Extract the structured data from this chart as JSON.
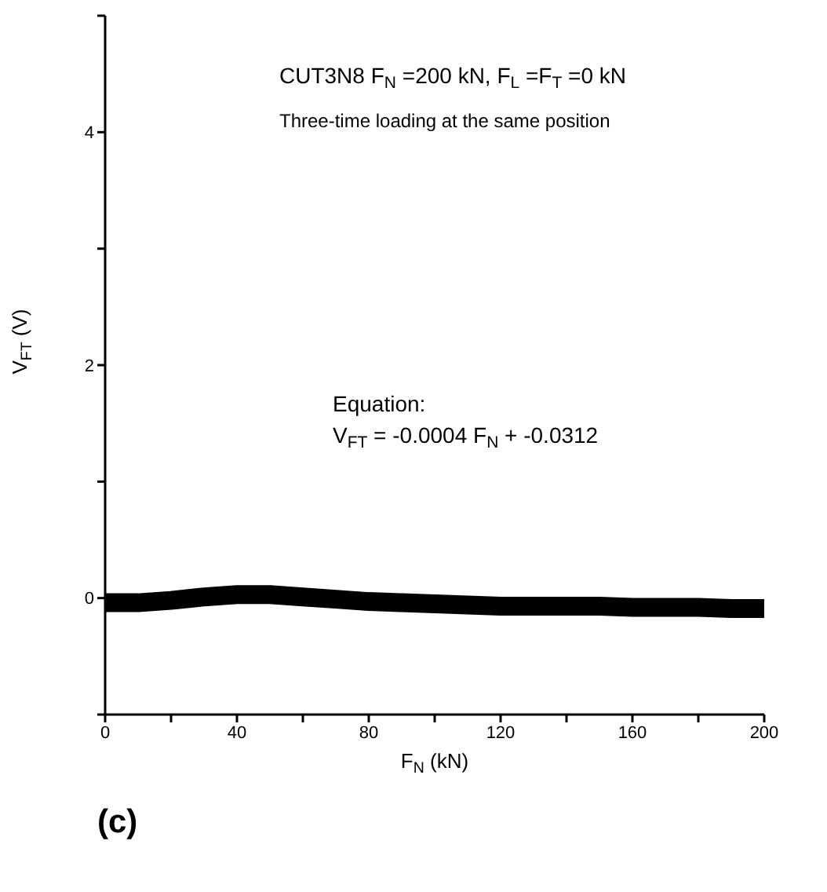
{
  "chart_data": {
    "type": "line",
    "xlabel": "F$_{N}$  (kN)",
    "ylabel": "V$_{FT}$ (V)",
    "annotations": [
      "CUT3N8 F$_{N}$ =200 kN, F$_{L}$ =F$_{T}$ =0 kN",
      "Three-time loading at the same position",
      "Equation:",
      "V$_{FT}$ = -0.0004 F$_{N}$ + -0.0312",
      "(c)"
    ],
    "x": [
      0,
      10,
      20,
      30,
      40,
      50,
      60,
      70,
      80,
      90,
      100,
      110,
      120,
      130,
      140,
      150,
      160,
      170,
      180,
      190,
      200
    ],
    "series": [
      {
        "color": "#000000",
        "values": [
          -0.04,
          -0.04,
          -0.02,
          0.01,
          0.03,
          0.03,
          0.01,
          -0.01,
          -0.03,
          -0.04,
          -0.05,
          -0.06,
          -0.07,
          -0.07,
          -0.07,
          -0.07,
          -0.08,
          -0.08,
          -0.08,
          -0.09,
          -0.09
        ]
      }
    ],
    "xlim": [
      0,
      200
    ],
    "xticks": [
      0,
      {
        "value": 20,
        "label": null
      },
      40,
      {
        "value": 60,
        "label": null
      },
      80,
      {
        "value": 100,
        "label": null
      },
      120,
      {
        "value": 140,
        "label": null
      },
      160,
      {
        "value": 180,
        "label": null
      },
      200
    ],
    "ylim": [
      -1,
      5
    ],
    "yticks": [
      {
        "value": -1,
        "label": null
      },
      0,
      {
        "value": 1,
        "label": null
      },
      2,
      {
        "value": 3,
        "label": null
      },
      4,
      {
        "value": 5,
        "label": null
      }
    ],
    "marker": "none"
  }
}
